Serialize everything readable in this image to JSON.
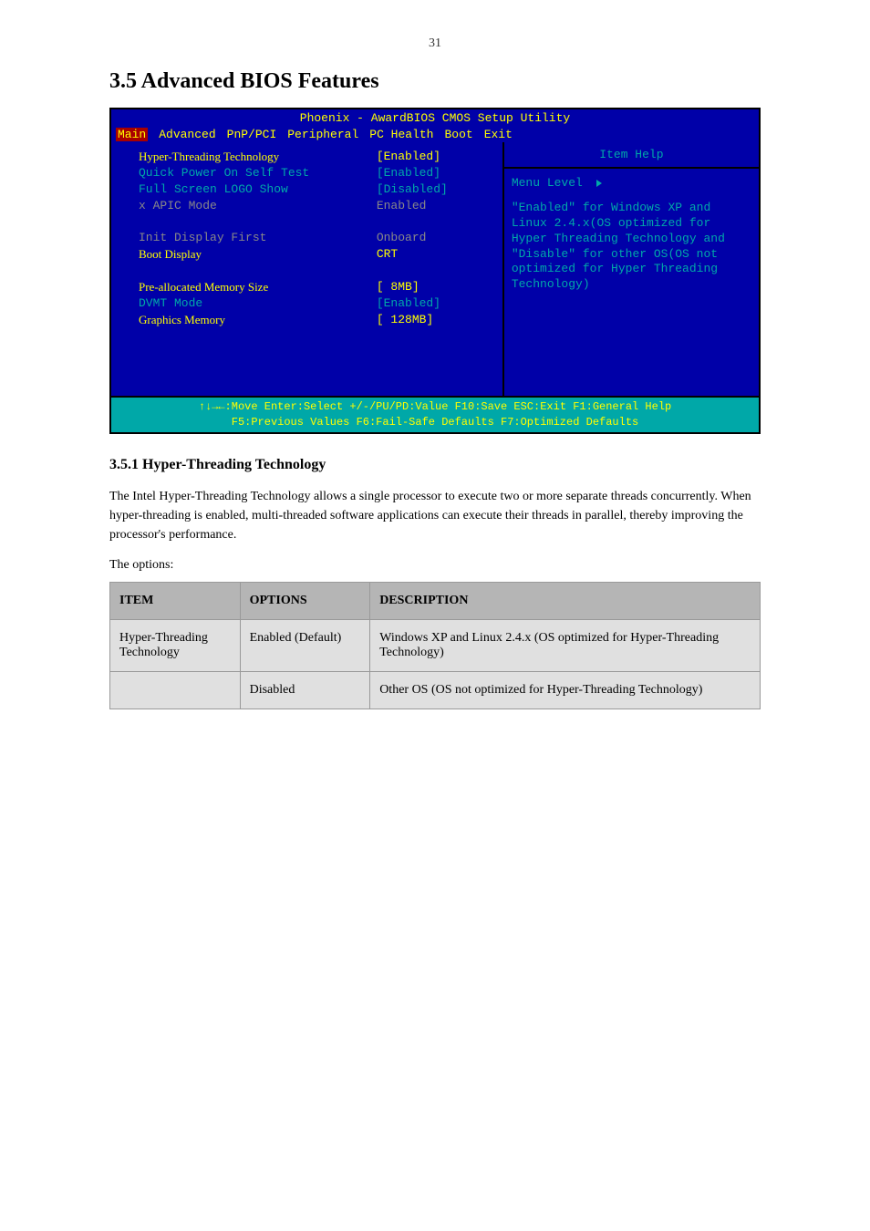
{
  "page_number": "31",
  "section_heading": "3.5 Advanced BIOS Features",
  "bios": {
    "title": "Phoenix - AwardBIOS CMOS Setup Utility",
    "menu": {
      "items": [
        "Main",
        "Advanced",
        "PnP/PCI",
        "Peripheral",
        "PC Health",
        "Boot",
        "Exit"
      ],
      "selected_index": 0
    },
    "settings": [
      {
        "label": "Hyper-Threading Technology",
        "value": "[Enabled]",
        "label_style": "highlight",
        "value_style": "normal"
      },
      {
        "label": "Quick Power On Self Test",
        "value": "[Enabled]",
        "label_style": "teal",
        "value_style": "teal"
      },
      {
        "label": "Full Screen LOGO Show",
        "value": "[Disabled]",
        "label_style": "teal",
        "value_style": "teal"
      },
      {
        "label": "x APIC Mode",
        "value": "Enabled",
        "label_style": "gray",
        "value_style": "gray"
      },
      {
        "label": "",
        "value": "",
        "label_style": "teal",
        "value_style": "teal"
      },
      {
        "label": "Init Display First",
        "value": "Onboard",
        "label_style": "gray",
        "value_style": "gray"
      },
      {
        "label": "Boot Display",
        "value": "CRT",
        "label_style": "highlight",
        "value_style": "normal"
      },
      {
        "label": "",
        "value": "",
        "label_style": "teal",
        "value_style": "teal"
      },
      {
        "label": "Pre-allocated Memory Size",
        "value": "[ 8MB]",
        "label_style": "highlight",
        "value_style": "normal"
      },
      {
        "label": "DVMT Mode",
        "value": "[Enabled]",
        "label_style": "teal",
        "value_style": "teal"
      },
      {
        "label": "Graphics Memory",
        "value": "[ 128MB]",
        "label_style": "highlight",
        "value_style": "normal"
      }
    ],
    "help": {
      "title": "Item Help",
      "menu_level": "Menu Level",
      "text": "\"Enabled\" for Windows XP and Linux 2.4.x(OS optimized for Hyper Threading Technology and \"Disable\" for other OS(OS not optimized for Hyper Threading Technology)"
    },
    "footer": {
      "line1": "↑↓→←:Move  Enter:Select  +/-/PU/PD:Value  F10:Save  ESC:Exit  F1:General Help",
      "line2": "F5:Previous Values    F6:Fail-Safe Defaults    F7:Optimized Defaults"
    }
  },
  "subsection": {
    "title": "3.5.1 Hyper-Threading Technology",
    "description": "The Intel Hyper-Threading Technology allows a single processor to execute two or more separate threads concurrently. When hyper-threading is enabled, multi-threaded software applications can execute their threads in parallel, thereby improving the processor's performance.",
    "options_label": "The options:"
  },
  "table": {
    "headers": [
      "ITEM",
      "OPTIONS",
      "DESCRIPTION"
    ],
    "rows": [
      {
        "item": "Hyper-Threading Technology",
        "options": "Enabled (Default)",
        "description": "Windows XP and Linux 2.4.x (OS optimized for Hyper-Threading Technology)"
      },
      {
        "item": "",
        "options": "Disabled",
        "description": "Other OS (OS not optimized for Hyper-Threading Technology)"
      }
    ]
  }
}
